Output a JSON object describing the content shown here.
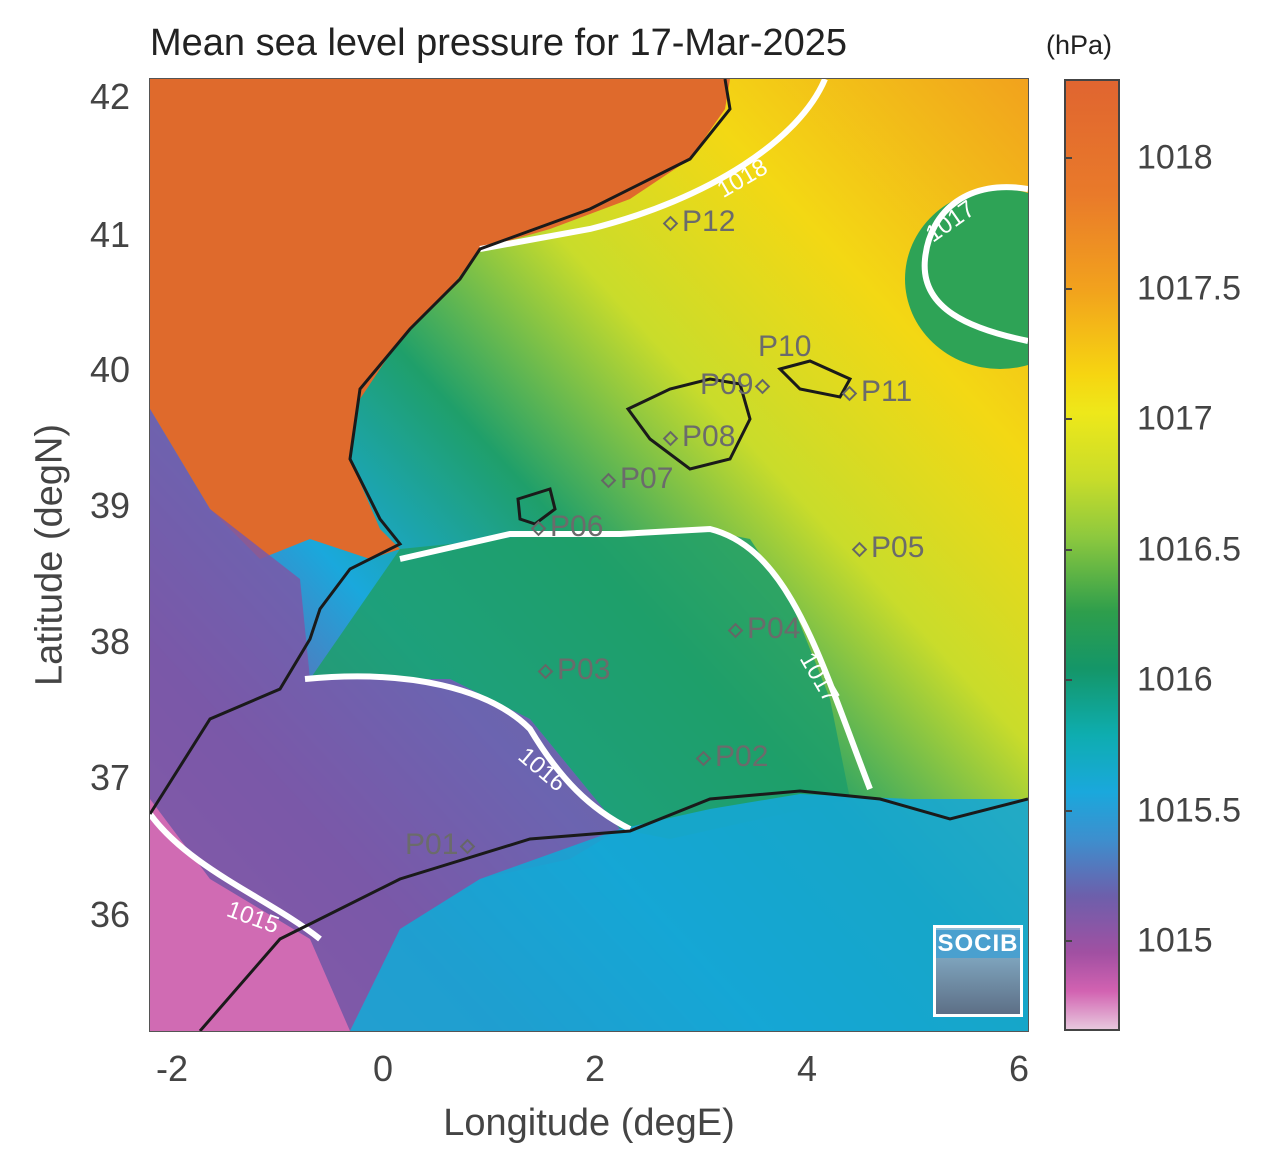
{
  "title": "Mean sea level pressure for 17-Mar-2025",
  "units": "(hPa)",
  "xlabel": "Longitude (degE)",
  "ylabel": "Latitude (degN)",
  "x_ticks": [
    "-2",
    "0",
    "2",
    "4",
    "6"
  ],
  "y_ticks": [
    "42",
    "41",
    "40",
    "39",
    "38",
    "37",
    "36"
  ],
  "colorbar_ticks": [
    "1018",
    "1017.5",
    "1017",
    "1016.5",
    "1016",
    "1015.5",
    "1015"
  ],
  "contour_labels": [
    "1018",
    "1017",
    "1017",
    "1016",
    "1015"
  ],
  "stations": [
    {
      "id": "P01"
    },
    {
      "id": "P02"
    },
    {
      "id": "P03"
    },
    {
      "id": "P04"
    },
    {
      "id": "P05"
    },
    {
      "id": "P06"
    },
    {
      "id": "P07"
    },
    {
      "id": "P08"
    },
    {
      "id": "P09"
    },
    {
      "id": "P10"
    },
    {
      "id": "P11"
    },
    {
      "id": "P12"
    }
  ],
  "logo_text": "SOCIB",
  "colors": {
    "high": "#e06530",
    "mid": "#2e9e4c",
    "low": "#6d5fab",
    "contour": "#ffffff",
    "coast": "#1a1a1a"
  }
}
